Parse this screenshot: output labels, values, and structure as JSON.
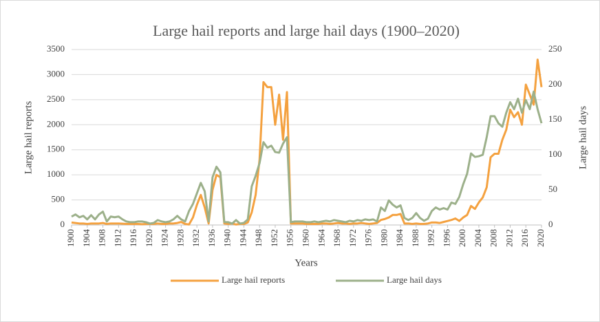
{
  "chart_data": {
    "type": "line",
    "title": "Large hail reports and large hail days (1900–2020)",
    "x_label": "Years",
    "y_label": "Large hail reports",
    "y2_label": "Large hail days",
    "x": [
      1900,
      1901,
      1902,
      1903,
      1904,
      1905,
      1906,
      1907,
      1908,
      1909,
      1910,
      1911,
      1912,
      1913,
      1914,
      1915,
      1916,
      1917,
      1918,
      1919,
      1920,
      1921,
      1922,
      1923,
      1924,
      1925,
      1926,
      1927,
      1928,
      1929,
      1930,
      1931,
      1932,
      1933,
      1934,
      1935,
      1936,
      1937,
      1938,
      1939,
      1940,
      1941,
      1942,
      1943,
      1944,
      1945,
      1946,
      1947,
      1948,
      1949,
      1950,
      1951,
      1952,
      1953,
      1954,
      1955,
      1956,
      1957,
      1958,
      1959,
      1960,
      1961,
      1962,
      1963,
      1964,
      1965,
      1966,
      1967,
      1968,
      1969,
      1970,
      1971,
      1972,
      1973,
      1974,
      1975,
      1976,
      1977,
      1978,
      1979,
      1980,
      1981,
      1982,
      1983,
      1984,
      1985,
      1986,
      1987,
      1988,
      1989,
      1990,
      1991,
      1992,
      1993,
      1994,
      1995,
      1996,
      1997,
      1998,
      1999,
      2000,
      2001,
      2002,
      2003,
      2004,
      2005,
      2006,
      2007,
      2008,
      2009,
      2010,
      2011,
      2012,
      2013,
      2014,
      2015,
      2016,
      2017,
      2018,
      2019,
      2020
    ],
    "series": [
      {
        "name": "Large hail reports",
        "color": "#f4a13f",
        "axis": "y",
        "values": [
          50,
          40,
          30,
          30,
          20,
          30,
          30,
          30,
          40,
          20,
          30,
          30,
          30,
          25,
          20,
          20,
          20,
          20,
          15,
          20,
          20,
          20,
          30,
          20,
          20,
          30,
          30,
          40,
          60,
          20,
          10,
          150,
          400,
          600,
          350,
          30,
          700,
          1000,
          950,
          30,
          20,
          30,
          10,
          20,
          20,
          50,
          250,
          600,
          1300,
          2850,
          2750,
          2750,
          2000,
          2600,
          1700,
          2650,
          30,
          30,
          30,
          30,
          20,
          20,
          20,
          20,
          30,
          30,
          20,
          30,
          40,
          30,
          30,
          20,
          30,
          30,
          40,
          30,
          20,
          30,
          40,
          100,
          120,
          150,
          200,
          200,
          220,
          30,
          30,
          20,
          30,
          20,
          20,
          30,
          50,
          50,
          40,
          60,
          80,
          100,
          130,
          80,
          150,
          200,
          380,
          320,
          450,
          550,
          750,
          1350,
          1420,
          1420,
          1700,
          1900,
          2300,
          2150,
          2250,
          2000,
          2800,
          2600,
          2400,
          3300,
          2750
        ]
      },
      {
        "name": "Large hail days",
        "color": "#9cb08a",
        "axis": "y2",
        "values": [
          12,
          15,
          11,
          13,
          8,
          14,
          8,
          15,
          19,
          5,
          12,
          11,
          12,
          8,
          5,
          4,
          4,
          5,
          5,
          4,
          2,
          3,
          7,
          5,
          4,
          5,
          8,
          13,
          8,
          5,
          20,
          30,
          45,
          60,
          48,
          5,
          68,
          83,
          75,
          4,
          4,
          2,
          7,
          2,
          3,
          8,
          55,
          70,
          88,
          118,
          110,
          113,
          104,
          103,
          116,
          125,
          4,
          5,
          5,
          5,
          4,
          4,
          5,
          4,
          5,
          6,
          5,
          7,
          6,
          5,
          4,
          6,
          5,
          7,
          6,
          8,
          7,
          8,
          5,
          25,
          20,
          35,
          29,
          25,
          28,
          10,
          7,
          10,
          17,
          10,
          6,
          9,
          20,
          25,
          22,
          24,
          22,
          32,
          30,
          40,
          58,
          73,
          102,
          97,
          98,
          100,
          125,
          155,
          155,
          145,
          140,
          160,
          175,
          165,
          180,
          160,
          178,
          165,
          190,
          165,
          145
        ]
      }
    ],
    "xlim": [
      1900,
      2020
    ],
    "xticks": [
      1900,
      1904,
      1908,
      1912,
      1916,
      1920,
      1924,
      1928,
      1932,
      1936,
      1940,
      1944,
      1948,
      1952,
      1956,
      1960,
      1964,
      1968,
      1972,
      1976,
      1980,
      1984,
      1988,
      1992,
      1996,
      2000,
      2004,
      2008,
      2012,
      2016,
      2020
    ],
    "ylim": [
      0,
      3500
    ],
    "yticks": [
      0,
      500,
      1000,
      1500,
      2000,
      2500,
      3000,
      3500
    ],
    "y2lim": [
      0,
      250
    ],
    "y2ticks": [
      0,
      50,
      100,
      150,
      200,
      250
    ],
    "legend": "bottom"
  }
}
